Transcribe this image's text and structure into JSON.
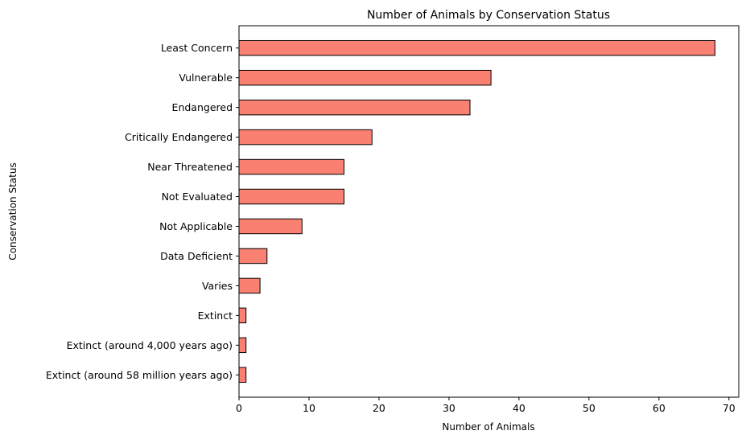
{
  "chart_data": {
    "type": "bar",
    "orientation": "horizontal",
    "title": "Number of Animals by Conservation Status",
    "xlabel": "Number of Animals",
    "ylabel": "Conservation Status",
    "xlim": [
      0,
      71.4
    ],
    "xticks": [
      0,
      10,
      20,
      30,
      40,
      50,
      60,
      70
    ],
    "grid": false,
    "bar_color": "#fa8072",
    "bar_edge_color": "#000000",
    "categories": [
      "Least Concern",
      "Vulnerable",
      "Endangered",
      "Critically Endangered",
      "Near Threatened",
      "Not Evaluated",
      "Not Applicable",
      "Data Deficient",
      "Varies",
      "Extinct",
      "Extinct (around 4,000 years ago)",
      "Extinct (around 58 million years ago)"
    ],
    "values": [
      68,
      36,
      33,
      19,
      15,
      15,
      9,
      4,
      3,
      1,
      1,
      1
    ]
  }
}
